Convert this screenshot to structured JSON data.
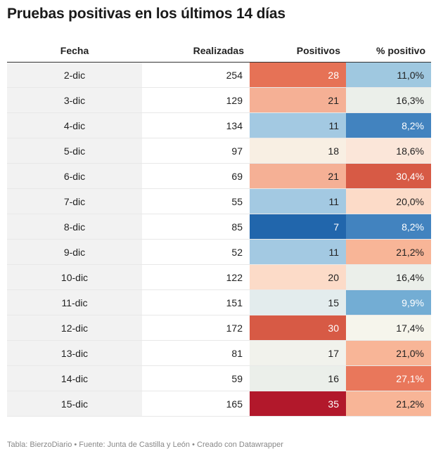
{
  "title": "Pruebas positivas en los últimos 14 días",
  "footer": "Tabla: BierzoDiario • Fuente: Junta de Castilla y León • Creado con Datawrapper",
  "chart_data": {
    "type": "table",
    "columns": [
      "Fecha",
      "Realizadas",
      "Positivos",
      "% positivo"
    ],
    "rows": [
      {
        "fecha": "2-dic",
        "realizadas": "254",
        "positivos": "28",
        "pct": "11,0%",
        "pos_bg": "#e67256",
        "pos_fg": "#ffffff",
        "pct_bg": "#9fc8e0",
        "pct_fg": "#222222"
      },
      {
        "fecha": "3-dic",
        "realizadas": "129",
        "positivos": "21",
        "pct": "16,3%",
        "pos_bg": "#f5b095",
        "pos_fg": "#222222",
        "pct_bg": "#ebefea",
        "pct_fg": "#222222"
      },
      {
        "fecha": "4-dic",
        "realizadas": "134",
        "positivos": "11",
        "pct": "8,2%",
        "pos_bg": "#a3c9e2",
        "pos_fg": "#222222",
        "pct_bg": "#4283bf",
        "pct_fg": "#ffffff"
      },
      {
        "fecha": "5-dic",
        "realizadas": "97",
        "positivos": "18",
        "pct": "18,6%",
        "pos_bg": "#f8efe3",
        "pos_fg": "#222222",
        "pct_bg": "#fbe6d9",
        "pct_fg": "#222222"
      },
      {
        "fecha": "6-dic",
        "realizadas": "69",
        "positivos": "21",
        "pct": "30,4%",
        "pos_bg": "#f5b095",
        "pos_fg": "#222222",
        "pct_bg": "#d75a45",
        "pct_fg": "#ffffff"
      },
      {
        "fecha": "7-dic",
        "realizadas": "55",
        "positivos": "11",
        "pct": "20,0%",
        "pos_bg": "#a3c9e2",
        "pos_fg": "#222222",
        "pct_bg": "#fcdbc8",
        "pct_fg": "#222222"
      },
      {
        "fecha": "8-dic",
        "realizadas": "85",
        "positivos": "7",
        "pct": "8,2%",
        "pos_bg": "#2166ac",
        "pos_fg": "#ffffff",
        "pct_bg": "#4283bf",
        "pct_fg": "#ffffff"
      },
      {
        "fecha": "9-dic",
        "realizadas": "52",
        "positivos": "11",
        "pct": "21,2%",
        "pos_bg": "#a3c9e2",
        "pos_fg": "#222222",
        "pct_bg": "#f8b597",
        "pct_fg": "#222222"
      },
      {
        "fecha": "10-dic",
        "realizadas": "122",
        "positivos": "20",
        "pct": "16,4%",
        "pos_bg": "#fcdbc8",
        "pos_fg": "#222222",
        "pct_bg": "#ebefea",
        "pct_fg": "#222222"
      },
      {
        "fecha": "11-dic",
        "realizadas": "151",
        "positivos": "15",
        "pct": "9,9%",
        "pos_bg": "#e3eced",
        "pos_fg": "#222222",
        "pct_bg": "#73add4",
        "pct_fg": "#ffffff"
      },
      {
        "fecha": "12-dic",
        "realizadas": "172",
        "positivos": "30",
        "pct": "17,4%",
        "pos_bg": "#d75a45",
        "pos_fg": "#ffffff",
        "pct_bg": "#f6f5ec",
        "pct_fg": "#222222"
      },
      {
        "fecha": "13-dic",
        "realizadas": "81",
        "positivos": "17",
        "pct": "21,0%",
        "pos_bg": "#f1f2ec",
        "pos_fg": "#222222",
        "pct_bg": "#f8b597",
        "pct_fg": "#222222"
      },
      {
        "fecha": "14-dic",
        "realizadas": "59",
        "positivos": "16",
        "pct": "27,1%",
        "pos_bg": "#ebefea",
        "pos_fg": "#222222",
        "pct_bg": "#e9775b",
        "pct_fg": "#ffffff"
      },
      {
        "fecha": "15-dic",
        "realizadas": "165",
        "positivos": "35",
        "pct": "21,2%",
        "pos_bg": "#b2182b",
        "pos_fg": "#ffffff",
        "pct_bg": "#f8b597",
        "pct_fg": "#222222"
      }
    ]
  }
}
